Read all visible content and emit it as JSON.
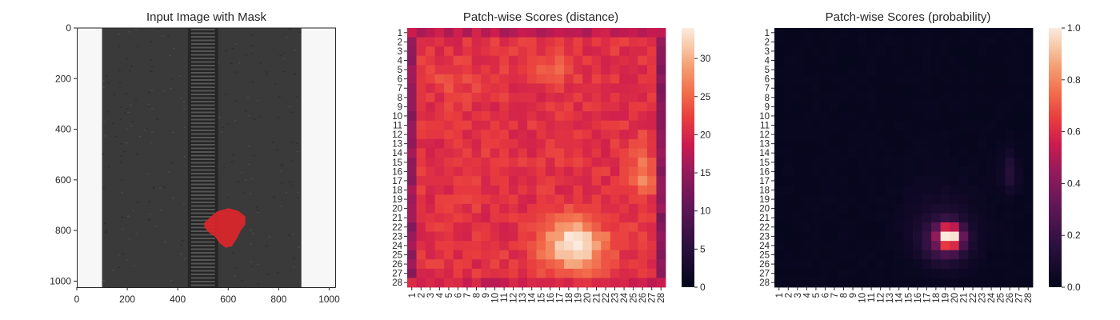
{
  "chart_data": [
    {
      "type": "image",
      "title": "Input Image with Mask",
      "xlim": [
        0,
        1024
      ],
      "ylim": [
        1024,
        0
      ],
      "x_ticks": [
        0,
        200,
        400,
        600,
        800,
        1000
      ],
      "y_ticks": [
        0,
        200,
        400,
        600,
        800,
        1000
      ],
      "x_tick_labels": [
        "0",
        "200",
        "400",
        "600",
        "800",
        "1000"
      ],
      "y_tick_labels": [
        "0",
        "200",
        "400",
        "600",
        "800",
        "1000"
      ],
      "image_content": {
        "fabric_extent_x": [
          100,
          890
        ],
        "zipper_extent_x": [
          440,
          560
        ],
        "background_color": "#f7f7f7",
        "fabric_color": "#3a3a3a",
        "zipper_color": "#262626",
        "mask_color": "#e0262a",
        "mask_polygon": [
          [
            520,
            755
          ],
          [
            555,
            725
          ],
          [
            600,
            712
          ],
          [
            640,
            722
          ],
          [
            668,
            745
          ],
          [
            668,
            775
          ],
          [
            650,
            800
          ],
          [
            635,
            830
          ],
          [
            615,
            862
          ],
          [
            590,
            868
          ],
          [
            565,
            850
          ],
          [
            548,
            825
          ],
          [
            520,
            805
          ],
          [
            505,
            785
          ],
          [
            505,
            770
          ]
        ]
      }
    },
    {
      "type": "heatmap",
      "title": "Patch-wise Scores (distance)",
      "x_tick_labels": [
        "1",
        "2",
        "3",
        "4",
        "5",
        "6",
        "7",
        "8",
        "9",
        "10",
        "11",
        "12",
        "13",
        "14",
        "15",
        "16",
        "17",
        "18",
        "19",
        "20",
        "21",
        "22",
        "23",
        "24",
        "25",
        "26",
        "27",
        "28"
      ],
      "y_tick_labels": [
        "1",
        "2",
        "3",
        "4",
        "5",
        "6",
        "7",
        "8",
        "9",
        "10",
        "11",
        "12",
        "13",
        "14",
        "15",
        "16",
        "17",
        "18",
        "19",
        "20",
        "21",
        "22",
        "23",
        "24",
        "25",
        "26",
        "27",
        "28"
      ],
      "colorbar": {
        "min": 0,
        "max": 34,
        "ticks": [
          0,
          5,
          10,
          15,
          20,
          25,
          30
        ],
        "tick_labels": [
          "0",
          "5",
          "10",
          "15",
          "20",
          "25",
          "30"
        ],
        "colormap": "rocket"
      },
      "value_model": {
        "baseline": 21,
        "edge_values": {
          "left": 15,
          "right": 14,
          "top": 18,
          "bottom": 19
        },
        "blobs": [
          {
            "cx": 18.5,
            "cy": 24,
            "sx": 2.4,
            "sy": 1.9,
            "amp": 13
          },
          {
            "cx": 26,
            "cy": 16,
            "sx": 0.8,
            "sy": 2,
            "amp": 6
          },
          {
            "cx": 16,
            "cy": 5,
            "sx": 2,
            "sy": 1.2,
            "amp": 3
          },
          {
            "cx": 6,
            "cy": 6,
            "sx": 2,
            "sy": 1.5,
            "amp": 2
          }
        ]
      }
    },
    {
      "type": "heatmap",
      "title": "Patch-wise Scores (probability)",
      "x_tick_labels": [
        "1",
        "2",
        "3",
        "4",
        "5",
        "6",
        "7",
        "8",
        "9",
        "10",
        "11",
        "12",
        "13",
        "14",
        "15",
        "16",
        "17",
        "18",
        "19",
        "20",
        "21",
        "22",
        "23",
        "24",
        "25",
        "26",
        "27",
        "28"
      ],
      "y_tick_labels": [
        "1",
        "2",
        "3",
        "4",
        "5",
        "6",
        "7",
        "8",
        "9",
        "10",
        "11",
        "12",
        "13",
        "14",
        "15",
        "16",
        "17",
        "18",
        "19",
        "20",
        "21",
        "22",
        "23",
        "24",
        "25",
        "26",
        "27",
        "28"
      ],
      "colorbar": {
        "min": 0,
        "max": 1,
        "ticks": [
          0,
          0.2,
          0.4,
          0.6,
          0.8,
          1.0
        ],
        "tick_labels": [
          "0.0",
          "0.2",
          "0.4",
          "0.6",
          "0.8",
          "1.0"
        ],
        "colormap": "rocket"
      },
      "value_model": {
        "baseline": 0.02,
        "blobs": [
          {
            "cx": 19.5,
            "cy": 23,
            "sx": 0.8,
            "sy": 0.8,
            "amp": 0.85
          },
          {
            "cx": 19,
            "cy": 23.5,
            "sx": 1.7,
            "sy": 1.6,
            "amp": 0.28
          },
          {
            "cx": 26,
            "cy": 16,
            "sx": 0.6,
            "sy": 1.5,
            "amp": 0.12
          },
          {
            "cx": 18.5,
            "cy": 21,
            "sx": 3,
            "sy": 3,
            "amp": 0.05
          }
        ]
      }
    }
  ]
}
